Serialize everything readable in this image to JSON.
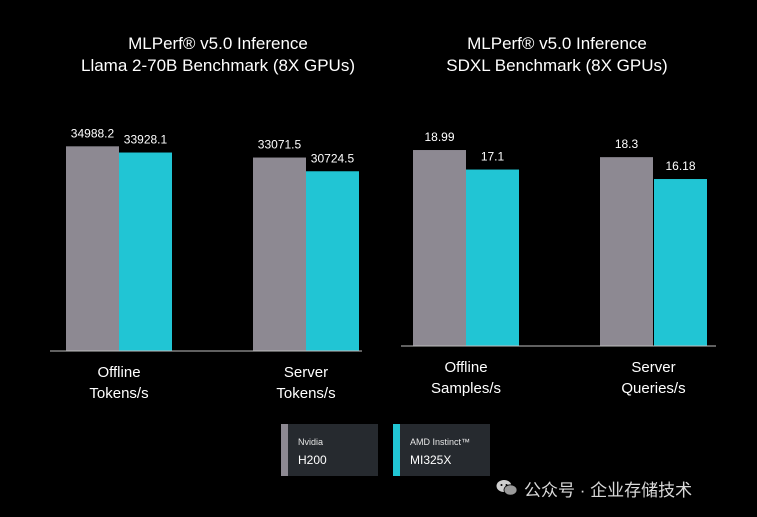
{
  "chart_data": [
    {
      "type": "bar",
      "title": "MLPerf® v5.0 Inference",
      "subtitle": "Llama 2-70B Benchmark (8X GPUs)",
      "categories": [
        "Offline\nTokens/s",
        "Server\nTokens/s"
      ],
      "series": [
        {
          "name": "Nvidia H200",
          "values": [
            34988.2,
            33071.5
          ],
          "labels": [
            "34988.2",
            "33071.5"
          ]
        },
        {
          "name": "AMD Instinct™ MI325X",
          "values": [
            33928.1,
            30724.5
          ],
          "labels": [
            "33928.1",
            "30724.5"
          ]
        }
      ],
      "ylim": [
        0,
        40000
      ],
      "grid": false,
      "xlabel": "",
      "ylabel": ""
    },
    {
      "type": "bar",
      "title": "MLPerf® v5.0 Inference",
      "subtitle": "SDXL Benchmark (8X GPUs)",
      "categories": [
        "Offline\nSamples/s",
        "Server\nQueries/s"
      ],
      "series": [
        {
          "name": "Nvidia H200",
          "values": [
            18.99,
            18.3
          ],
          "labels": [
            "18.99",
            "18.3"
          ]
        },
        {
          "name": "AMD Instinct™ MI325X",
          "values": [
            17.1,
            16.18
          ],
          "labels": [
            "17.1",
            "16.18"
          ]
        }
      ],
      "ylim": [
        0,
        21.9
      ],
      "grid": false,
      "xlabel": "",
      "ylabel": ""
    }
  ],
  "legend": [
    {
      "brand": "Nvidia",
      "model": "H200",
      "color": "#8d8992"
    },
    {
      "brand": "AMD Instinct™",
      "model": "MI325X",
      "color": "#21c5d4"
    }
  ],
  "watermark": {
    "text": "公众号 · 企业存储技术",
    "icon": "wechat-icon"
  },
  "colors": {
    "background": "#000000",
    "axis": "#bfbfbf",
    "text": "#ffffff"
  }
}
